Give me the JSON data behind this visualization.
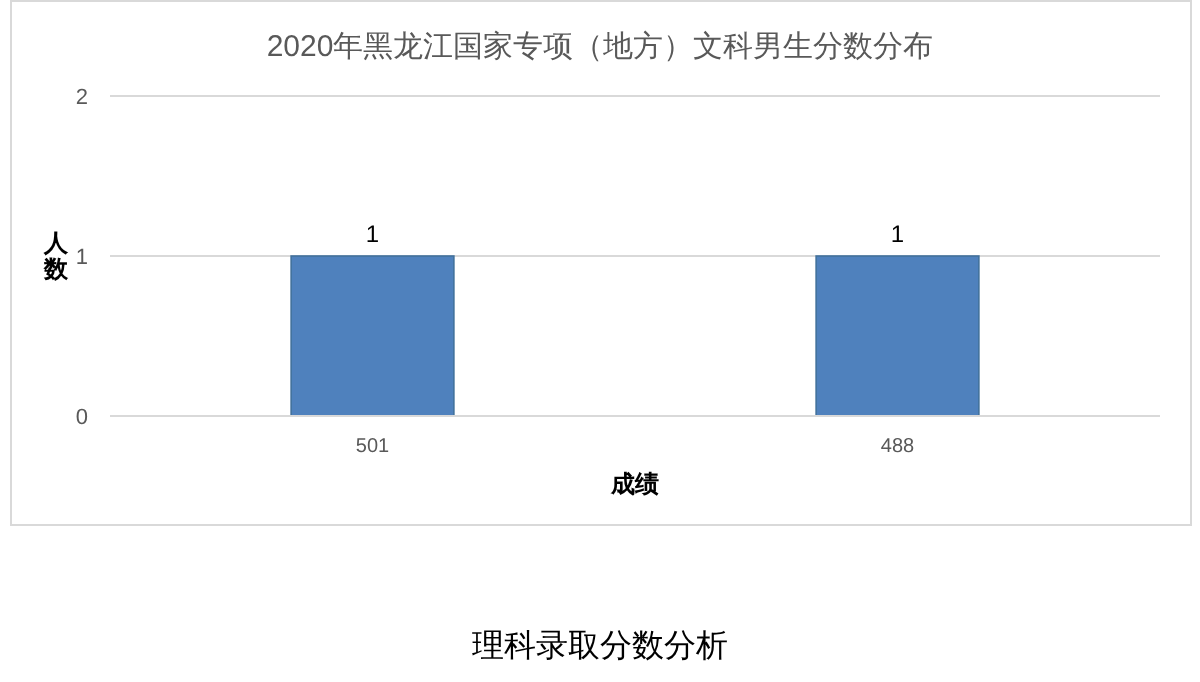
{
  "chart_data": {
    "type": "bar",
    "title": "2020年黑龙江国家专项（地方）文科男生分数分布",
    "xlabel": "成绩",
    "ylabel": "人数",
    "categories": [
      "501",
      "488"
    ],
    "values": [
      1,
      1
    ],
    "color": "#4f81bd",
    "ylim": [
      0,
      2
    ],
    "yticks": [
      0,
      1,
      2
    ],
    "grid": "y",
    "data_labels": true,
    "annotations": [
      "理科录取分数分析"
    ]
  }
}
